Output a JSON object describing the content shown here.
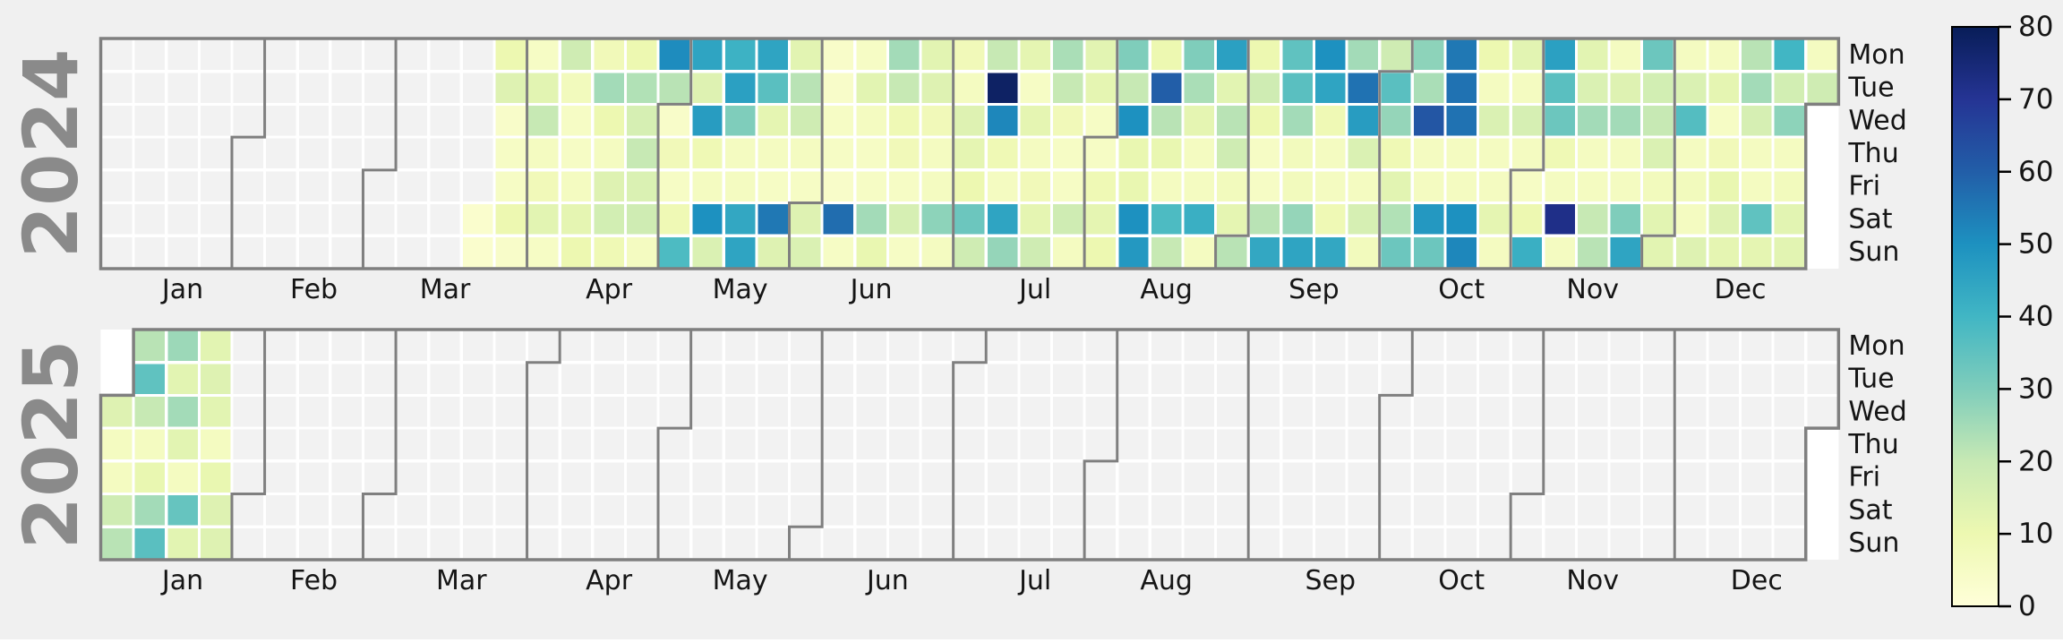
{
  "figure": {
    "background_color": "#f0f0f0",
    "empty_cell_color": "#f2f2f2",
    "outside_year_color": "#ffffff",
    "boundary_line_color": "#7f7f7f",
    "year_label_color": "#8a8a8a"
  },
  "colorbar": {
    "min": 0,
    "max": 80,
    "tick_labels": [
      "0",
      "10",
      "20",
      "30",
      "40",
      "50",
      "60",
      "70",
      "80"
    ],
    "colormap_name": "YlGnBu",
    "colormap_stops": [
      [
        0.0,
        "#ffffd9"
      ],
      [
        0.125,
        "#edf8b1"
      ],
      [
        0.25,
        "#c7e9b4"
      ],
      [
        0.375,
        "#7fcdbb"
      ],
      [
        0.5,
        "#41b6c4"
      ],
      [
        0.625,
        "#1d91c0"
      ],
      [
        0.75,
        "#225ea8"
      ],
      [
        0.875,
        "#253494"
      ],
      [
        1.0,
        "#081d58"
      ]
    ]
  },
  "chart_data": {
    "type": "heatmap",
    "subtype": "calendar-year-heatmap",
    "colormap": "YlGnBu",
    "vmin": 0,
    "vmax": 80,
    "legend_position": "right-colorbar",
    "weekday_labels": [
      "Mon",
      "Tue",
      "Wed",
      "Thu",
      "Fri",
      "Sat",
      "Sun"
    ],
    "month_labels": [
      "Jan",
      "Feb",
      "Mar",
      "Apr",
      "May",
      "Jun",
      "Jul",
      "Aug",
      "Sep",
      "Oct",
      "Nov",
      "Dec"
    ],
    "note_encoding": "weeks = 53 Mon-Sun columns per year; number = value, null week/cell = in-year day without data (gray), -1 = cell outside the year (white)",
    "years": [
      {
        "label": "2024",
        "weeks": [
          null,
          null,
          null,
          null,
          null,
          null,
          null,
          null,
          null,
          null,
          null,
          [
            null,
            null,
            null,
            null,
            null,
            3,
            3
          ],
          [
            10,
            14,
            4,
            5,
            5,
            10,
            4
          ],
          [
            5,
            13,
            20,
            6,
            8,
            13,
            5
          ],
          [
            18,
            7,
            5,
            5,
            6,
            12,
            10
          ],
          [
            8,
            25,
            10,
            6,
            14,
            17,
            9
          ],
          [
            10,
            23,
            16,
            20,
            15,
            18,
            6
          ],
          [
            51,
            22,
            4,
            8,
            5,
            9,
            38
          ],
          [
            45,
            14,
            47,
            9,
            6,
            50,
            15
          ],
          [
            41,
            46,
            30,
            6,
            6,
            44,
            45
          ],
          [
            45,
            36,
            12,
            6,
            5,
            55,
            14
          ],
          [
            13,
            22,
            18,
            6,
            5,
            14,
            15
          ],
          [
            4,
            4,
            5,
            5,
            4,
            57,
            5
          ],
          [
            5,
            13,
            6,
            5,
            5,
            25,
            11
          ],
          [
            25,
            20,
            9,
            8,
            5,
            16,
            5
          ],
          [
            13,
            14,
            8,
            6,
            6,
            28,
            6
          ],
          [
            8,
            6,
            14,
            12,
            10,
            33,
            18
          ],
          [
            20,
            78,
            52,
            9,
            6,
            45,
            27
          ],
          [
            12,
            5,
            12,
            6,
            8,
            12,
            18
          ],
          [
            24,
            20,
            8,
            5,
            5,
            18,
            6
          ],
          [
            13,
            12,
            5,
            5,
            9,
            12,
            10
          ],
          [
            30,
            20,
            50,
            11,
            11,
            50,
            48
          ],
          [
            10,
            60,
            22,
            11,
            6,
            38,
            20
          ],
          [
            30,
            24,
            12,
            6,
            6,
            42,
            6
          ],
          [
            46,
            13,
            22,
            18,
            7,
            12,
            22
          ],
          [
            10,
            18,
            10,
            5,
            5,
            22,
            44
          ],
          [
            35,
            36,
            25,
            7,
            7,
            27,
            45
          ],
          [
            50,
            45,
            9,
            6,
            6,
            9,
            44
          ],
          [
            25,
            56,
            47,
            15,
            6,
            16,
            7
          ],
          [
            18,
            36,
            27,
            9,
            13,
            23,
            33
          ],
          [
            28,
            24,
            62,
            6,
            6,
            48,
            33
          ],
          [
            55,
            56,
            56,
            6,
            6,
            50,
            52
          ],
          [
            10,
            6,
            15,
            6,
            6,
            12,
            6
          ],
          [
            13,
            6,
            16,
            6,
            5,
            10,
            42
          ],
          [
            46,
            36,
            33,
            9,
            6,
            72,
            6
          ],
          [
            13,
            15,
            25,
            6,
            6,
            20,
            22
          ],
          [
            6,
            14,
            25,
            6,
            6,
            30,
            45
          ],
          [
            33,
            17,
            20,
            15,
            7,
            13,
            13
          ],
          [
            6,
            15,
            37,
            6,
            7,
            6,
            14
          ],
          [
            6,
            12,
            5,
            8,
            11,
            14,
            12
          ],
          [
            22,
            25,
            16,
            6,
            6,
            35,
            12
          ],
          [
            40,
            17,
            28,
            6,
            7,
            13,
            13
          ],
          [
            6,
            18,
            -1,
            -1,
            -1,
            -1,
            -1
          ]
        ]
      },
      {
        "label": "2025",
        "weeks": [
          [
            -1,
            -1,
            14,
            6,
            6,
            18,
            22
          ],
          [
            22,
            35,
            20,
            6,
            11,
            25,
            36
          ],
          [
            26,
            13,
            25,
            13,
            6,
            34,
            13
          ],
          [
            13,
            14,
            13,
            6,
            11,
            14,
            14
          ],
          null,
          null,
          null,
          null,
          null,
          null,
          null,
          null,
          null,
          null,
          null,
          null,
          null,
          null,
          null,
          null,
          null,
          null,
          null,
          null,
          null,
          null,
          null,
          null,
          null,
          null,
          null,
          null,
          null,
          null,
          null,
          null,
          null,
          null,
          null,
          null,
          null,
          null,
          null,
          null,
          null,
          null,
          null,
          null,
          null,
          null,
          null,
          null,
          [
            null,
            null,
            null,
            -1,
            -1,
            -1,
            -1
          ]
        ]
      }
    ]
  }
}
